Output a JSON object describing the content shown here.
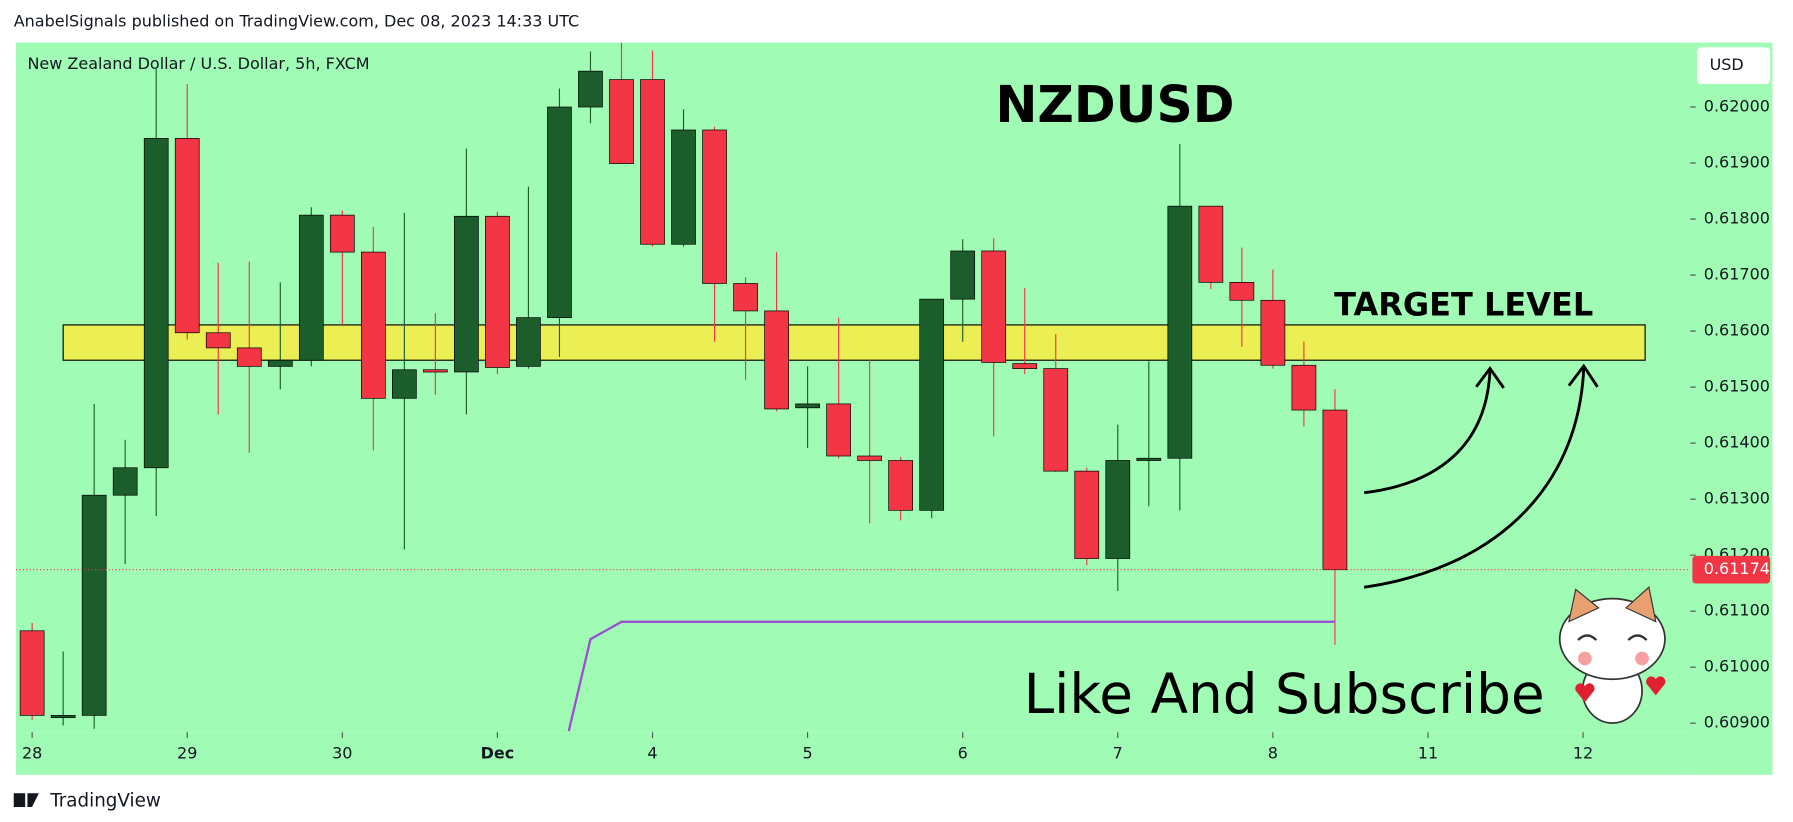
{
  "header": "AnabelSignals published on TradingView.com, Dec 08, 2023 14:33 UTC",
  "footer": "TradingView",
  "chart_data": {
    "type": "candlestick",
    "subtitle": "New Zealand Dollar / U.S. Dollar, 5h, FXCM",
    "title": "NZDUSD",
    "caption": "Like And Subscribe",
    "currency": "USD",
    "up_color": "#1b5e2b",
    "down_color": "#f23645",
    "background": "#a0fcb5",
    "ohlc": [
      [
        0.61065,
        0.61079,
        0.60906,
        0.60914
      ],
      [
        0.60914,
        0.61028,
        0.60896,
        0.60914
      ],
      [
        0.60914,
        0.6147,
        0.6089,
        0.61307
      ],
      [
        0.61307,
        0.61406,
        0.61184,
        0.61356
      ],
      [
        0.61356,
        0.62068,
        0.6127,
        0.61944
      ],
      [
        0.61944,
        0.62041,
        0.61585,
        0.61597
      ],
      [
        0.61597,
        0.61722,
        0.61451,
        0.6157
      ],
      [
        0.6157,
        0.61724,
        0.61383,
        0.61537
      ],
      [
        0.61537,
        0.61687,
        0.61496,
        0.61548
      ],
      [
        0.61548,
        0.61821,
        0.61537,
        0.61807
      ],
      [
        0.61807,
        0.61815,
        0.61611,
        0.61741
      ],
      [
        0.61741,
        0.61786,
        0.61387,
        0.6148
      ],
      [
        0.6148,
        0.61811,
        0.6121,
        0.61531
      ],
      [
        0.61531,
        0.61632,
        0.61486,
        0.61527
      ],
      [
        0.61527,
        0.61926,
        0.61451,
        0.61805
      ],
      [
        0.61805,
        0.61813,
        0.61523,
        0.61535
      ],
      [
        0.61537,
        0.61858,
        0.61533,
        0.61624
      ],
      [
        0.61624,
        0.62033,
        0.61554,
        0.62
      ],
      [
        0.62,
        0.62099,
        0.61971,
        0.62064
      ],
      [
        0.62049,
        0.62115,
        0.61899,
        0.61899
      ],
      [
        0.62049,
        0.62101,
        0.61751,
        0.61755
      ],
      [
        0.61755,
        0.61996,
        0.61751,
        0.61959
      ],
      [
        0.61959,
        0.61965,
        0.61581,
        0.61685
      ],
      [
        0.61685,
        0.61696,
        0.61513,
        0.61636
      ],
      [
        0.61636,
        0.61741,
        0.61457,
        0.61461
      ],
      [
        0.61463,
        0.61537,
        0.61391,
        0.6147
      ],
      [
        0.6147,
        0.61624,
        0.61373,
        0.61377
      ],
      [
        0.61377,
        0.6155,
        0.61257,
        0.61369
      ],
      [
        0.61369,
        0.61375,
        0.61262,
        0.6128
      ],
      [
        0.6128,
        0.61657,
        0.61266,
        0.61657
      ],
      [
        0.61657,
        0.61764,
        0.61581,
        0.61743
      ],
      [
        0.61743,
        0.61766,
        0.61412,
        0.61544
      ],
      [
        0.61542,
        0.61677,
        0.61523,
        0.61533
      ],
      [
        0.61533,
        0.61595,
        0.61348,
        0.6135
      ],
      [
        0.6135,
        0.61356,
        0.61182,
        0.61194
      ],
      [
        0.61194,
        0.61433,
        0.61136,
        0.61369
      ],
      [
        0.61369,
        0.61546,
        0.61287,
        0.61373
      ],
      [
        0.61373,
        0.61934,
        0.6128,
        0.61823
      ],
      [
        0.61823,
        0.61823,
        0.61675,
        0.61687
      ],
      [
        0.61687,
        0.61749,
        0.61572,
        0.61655
      ],
      [
        0.61655,
        0.6171,
        0.61533,
        0.61539
      ],
      [
        0.61539,
        0.61581,
        0.6143,
        0.61459
      ],
      [
        0.61459,
        0.61496,
        0.6104,
        0.61174
      ]
    ],
    "xlim": [
      -0.52,
      53.45
    ],
    "xticks": [
      {
        "value": 0,
        "label": "28"
      },
      {
        "value": 5,
        "label": "29"
      },
      {
        "value": 10,
        "label": "30"
      },
      {
        "value": 15,
        "label": "Dec"
      },
      {
        "value": 20,
        "label": "4"
      },
      {
        "value": 25,
        "label": "5"
      },
      {
        "value": 30,
        "label": "6"
      },
      {
        "value": 35,
        "label": "7"
      },
      {
        "value": 40,
        "label": "8"
      },
      {
        "value": 45,
        "label": "11"
      },
      {
        "value": 50,
        "label": "12"
      }
    ],
    "ylim": [
      0.60886,
      0.62115
    ],
    "yticks": [
      {
        "value": 0.609,
        "label": "0.60900"
      },
      {
        "value": 0.61,
        "label": "0.61000"
      },
      {
        "value": 0.611,
        "label": "0.61100"
      },
      {
        "value": 0.612,
        "label": "0.61200"
      },
      {
        "value": 0.613,
        "label": "0.61300"
      },
      {
        "value": 0.614,
        "label": "0.61400"
      },
      {
        "value": 0.615,
        "label": "0.61500"
      },
      {
        "value": 0.616,
        "label": "0.61600"
      },
      {
        "value": 0.617,
        "label": "0.61700"
      },
      {
        "value": 0.618,
        "label": "0.61800"
      },
      {
        "value": 0.619,
        "label": "0.61900"
      },
      {
        "value": 0.62,
        "label": "0.62000"
      }
    ],
    "last_price": 0.61174,
    "zone": {
      "label": "TARGET LEVEL",
      "from": 0.61548,
      "to": 0.61611,
      "x": [
        1,
        52
      ],
      "color": "#ffeb3b"
    },
    "line": {
      "color": "#9c4fd0",
      "x": [
        17.3,
        18,
        19,
        42
      ],
      "values": [
        0.60886,
        0.6105,
        0.61081,
        0.61081
      ]
    }
  }
}
